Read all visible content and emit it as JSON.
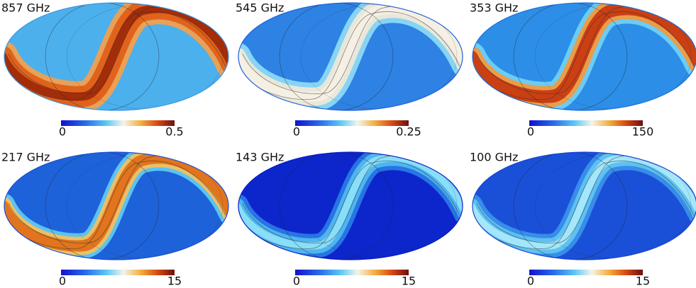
{
  "panels": [
    {
      "label": "857 GHz",
      "colorbar": {
        "min": 0,
        "max": 0.5
      }
    },
    {
      "label": "545 GHz",
      "colorbar": {
        "min": 0,
        "max": 0.25
      }
    },
    {
      "label": "353 GHz",
      "colorbar": {
        "min": 0,
        "max": 150
      }
    },
    {
      "label": "217 GHz",
      "colorbar": {
        "min": 0,
        "max": 15
      }
    },
    {
      "label": "143 GHz",
      "colorbar": {
        "min": 0,
        "max": 15
      }
    },
    {
      "label": "100 GHz",
      "colorbar": {
        "min": 0,
        "max": 15
      }
    }
  ]
}
